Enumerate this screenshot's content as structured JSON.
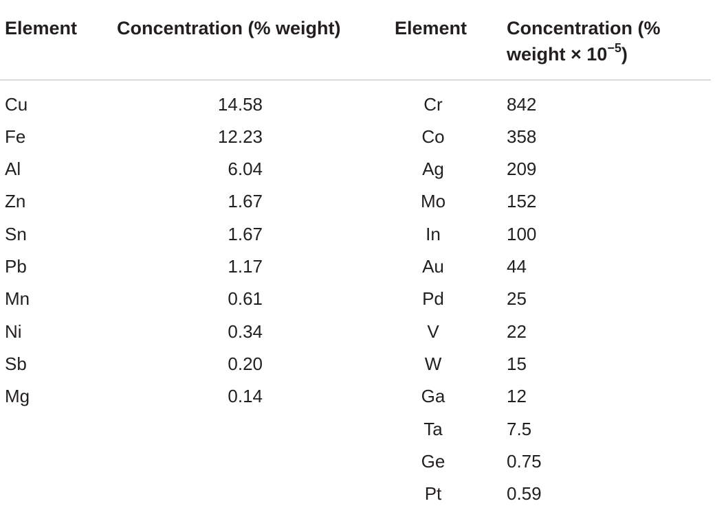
{
  "table": {
    "headers": {
      "element_left": "Element",
      "concentration_left": "Concentration (% weight)",
      "element_right": "Element",
      "concentration_right_main": "Concentration (% weight × 10",
      "concentration_right_sup": "−5",
      "concentration_right_end": ")"
    },
    "rows": [
      {
        "el1": "Cu",
        "c1": "14.58",
        "el2": "Cr",
        "c2": "842"
      },
      {
        "el1": "Fe",
        "c1": "12.23",
        "el2": "Co",
        "c2": "358"
      },
      {
        "el1": "Al",
        "c1": "6.04",
        "el2": "Ag",
        "c2": "209"
      },
      {
        "el1": "Zn",
        "c1": "1.67",
        "el2": "Mo",
        "c2": "152"
      },
      {
        "el1": "Sn",
        "c1": "1.67",
        "el2": "In",
        "c2": "100"
      },
      {
        "el1": "Pb",
        "c1": "1.17",
        "el2": "Au",
        "c2": "44"
      },
      {
        "el1": "Mn",
        "c1": "0.61",
        "el2": "Pd",
        "c2": "25"
      },
      {
        "el1": "Ni",
        "c1": "0.34",
        "el2": "V",
        "c2": "22"
      },
      {
        "el1": "Sb",
        "c1": "0.20",
        "el2": "W",
        "c2": "15"
      },
      {
        "el1": "Mg",
        "c1": "0.14",
        "el2": "Ga",
        "c2": "12"
      },
      {
        "el1": "",
        "c1": "",
        "el2": "Ta",
        "c2": "7.5"
      },
      {
        "el1": "",
        "c1": "",
        "el2": "Ge",
        "c2": "0.75"
      },
      {
        "el1": "",
        "c1": "",
        "el2": "Pt",
        "c2": "0.59"
      }
    ]
  }
}
